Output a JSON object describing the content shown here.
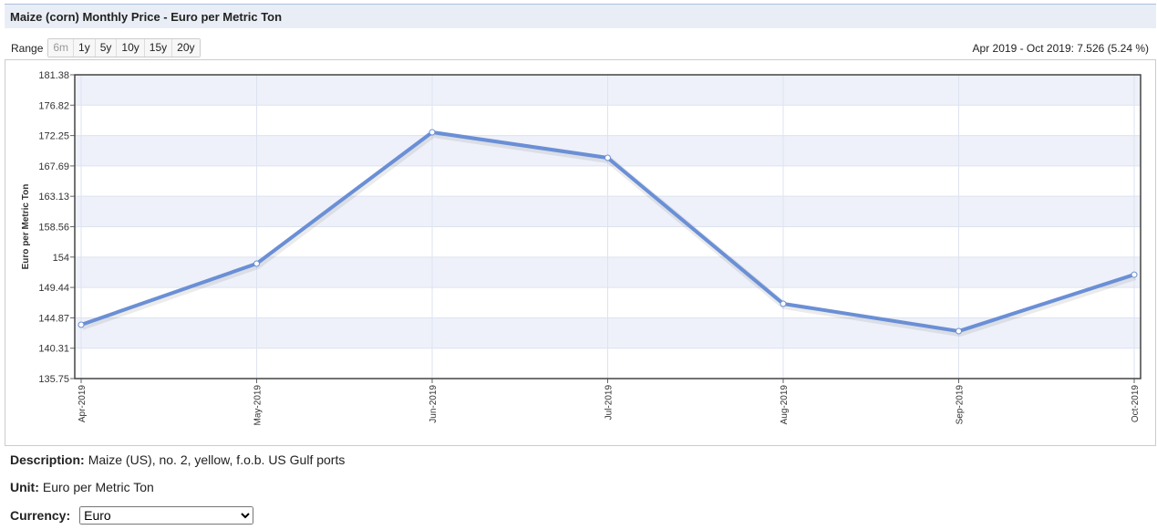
{
  "header": {
    "title": "Maize (corn) Monthly Price - Euro per Metric Ton"
  },
  "range": {
    "label": "Range",
    "buttons": [
      "6m",
      "1y",
      "5y",
      "10y",
      "15y",
      "20y"
    ],
    "summary": "Apr 2019 - Oct 2019: 7.526 (5.24 %)"
  },
  "chart_data": {
    "type": "line",
    "y_label": "Euro per Metric Ton",
    "categories": [
      "Apr-2019",
      "May-2019",
      "Jun-2019",
      "Jul-2019",
      "Aug-2019",
      "Sep-2019",
      "Oct-2019"
    ],
    "values": [
      143.83,
      153.02,
      172.75,
      168.91,
      146.99,
      142.87,
      151.36
    ],
    "color": "#6a8fd6",
    "ylim": [
      135.75,
      181.38
    ],
    "yticks": [
      135.75,
      140.31,
      144.87,
      149.44,
      154,
      158.56,
      163.13,
      167.69,
      172.25,
      176.82,
      181.38
    ],
    "grid": true
  },
  "description": {
    "label": "Description:",
    "text": "Maize (US), no. 2, yellow, f.o.b. US Gulf ports"
  },
  "unit": {
    "label": "Unit:",
    "text": "Euro per Metric Ton"
  },
  "currency": {
    "label": "Currency:",
    "selected": "Euro"
  }
}
